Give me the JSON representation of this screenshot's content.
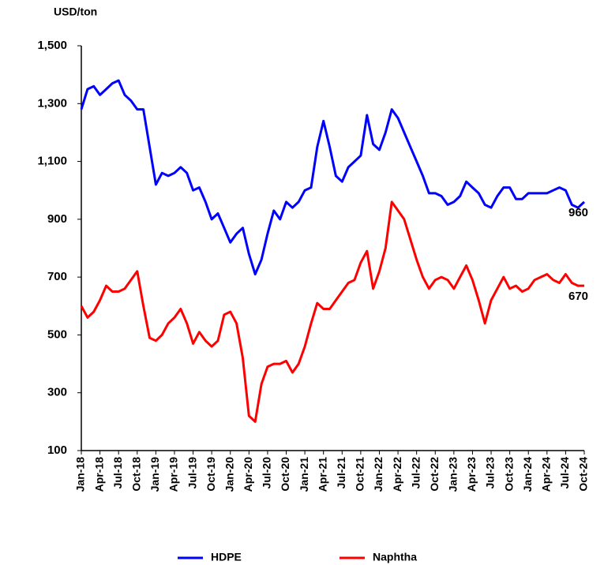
{
  "chart_data": {
    "type": "line",
    "y_axis_label": "USD/ton",
    "categories": [
      "Jan-18",
      null,
      null,
      "Apr-18",
      null,
      null,
      "Jul-18",
      null,
      null,
      "Oct-18",
      null,
      null,
      "Jan-19",
      null,
      null,
      "Apr-19",
      null,
      null,
      "Jul-19",
      null,
      null,
      "Oct-19",
      null,
      null,
      "Jan-20",
      null,
      null,
      "Apr-20",
      null,
      null,
      "Jul-20",
      null,
      null,
      "Oct-20",
      null,
      null,
      "Jan-21",
      null,
      null,
      "Apr-21",
      null,
      null,
      "Jul-21",
      null,
      null,
      "Oct-21",
      null,
      null,
      "Jan-22",
      null,
      null,
      "Apr-22",
      null,
      null,
      "Jul-22",
      null,
      null,
      "Oct-22",
      null,
      null,
      "Jan-23",
      null,
      null,
      "Apr-23",
      null,
      null,
      "Jul-23",
      null,
      null,
      "Oct-23",
      null,
      null,
      "Jan-24",
      null,
      null,
      "Apr-24",
      null,
      null,
      "Jul-24",
      null,
      null,
      "Oct-24"
    ],
    "series": [
      {
        "name": "HDPE",
        "color": "#0000ff",
        "values": [
          1280,
          1350,
          1360,
          1330,
          1350,
          1370,
          1380,
          1330,
          1310,
          1280,
          1280,
          1150,
          1020,
          1060,
          1050,
          1060,
          1080,
          1060,
          1000,
          1010,
          960,
          900,
          920,
          870,
          820,
          850,
          870,
          780,
          710,
          760,
          850,
          930,
          900,
          960,
          940,
          960,
          1000,
          1010,
          1150,
          1240,
          1150,
          1050,
          1030,
          1080,
          1100,
          1120,
          1260,
          1160,
          1140,
          1200,
          1280,
          1250,
          1200,
          1150,
          1100,
          1050,
          990,
          990,
          980,
          950,
          960,
          980,
          1030,
          1010,
          990,
          950,
          940,
          980,
          1010,
          1010,
          970,
          970,
          990,
          990,
          990,
          990,
          1000,
          1010,
          1000,
          950,
          940,
          960
        ]
      },
      {
        "name": "Naphtha",
        "color": "#ff0000",
        "values": [
          600,
          560,
          580,
          620,
          670,
          650,
          650,
          660,
          690,
          720,
          600,
          490,
          480,
          500,
          540,
          560,
          590,
          540,
          470,
          510,
          480,
          460,
          480,
          570,
          580,
          540,
          420,
          220,
          200,
          330,
          390,
          400,
          400,
          410,
          370,
          400,
          460,
          540,
          610,
          590,
          590,
          620,
          650,
          680,
          690,
          750,
          790,
          660,
          720,
          800,
          960,
          930,
          900,
          830,
          760,
          700,
          660,
          690,
          700,
          690,
          660,
          700,
          740,
          690,
          620,
          540,
          620,
          660,
          700,
          660,
          670,
          650,
          660,
          690,
          700,
          710,
          690,
          680,
          710,
          680,
          670,
          670
        ]
      }
    ],
    "annotations": [
      "960",
      "670"
    ],
    "ylim": [
      100,
      1500
    ],
    "yticks": [
      100,
      300,
      500,
      700,
      900,
      {
        "value": 1100,
        "label": "1,100"
      },
      {
        "value": 1300,
        "label": "1,300"
      },
      {
        "value": 1500,
        "label": "1,500"
      }
    ],
    "grid": false,
    "legend": "bottom"
  }
}
